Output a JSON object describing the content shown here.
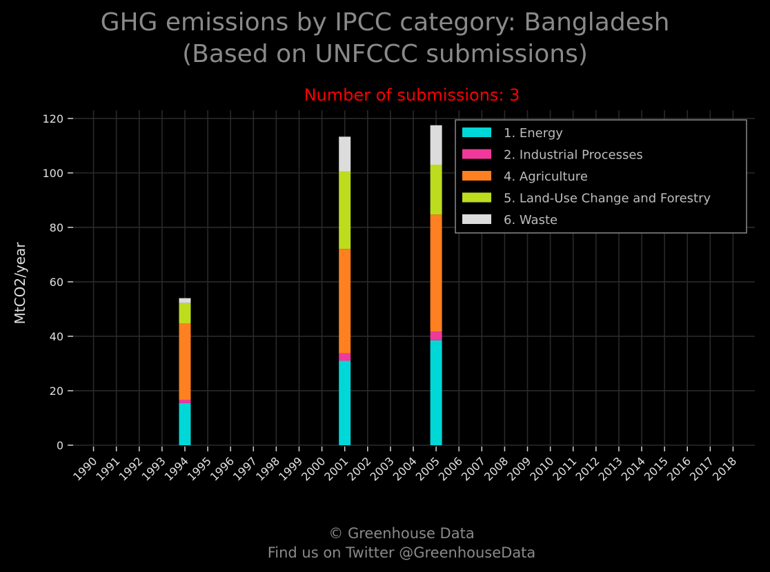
{
  "title_line1": "GHG emissions by IPCC category: Bangladesh",
  "title_line2": "(Based on UNFCCC submissions)",
  "subtitle": "Number of submissions: 3",
  "footer_line1": "© Greenhouse Data",
  "footer_line2": "Find us on Twitter @GreenhouseData",
  "colors": {
    "background": "#000000",
    "grid": "#2a2a2a",
    "title": "#8a8a8a",
    "subtitle": "#ff0000"
  },
  "chart_data": {
    "type": "bar",
    "stacked": true,
    "categories": [
      "1990",
      "1991",
      "1992",
      "1993",
      "1994",
      "1995",
      "1996",
      "1997",
      "1998",
      "1999",
      "2000",
      "2001",
      "2002",
      "2003",
      "2004",
      "2005",
      "2006",
      "2007",
      "2008",
      "2009",
      "2010",
      "2011",
      "2012",
      "2013",
      "2014",
      "2015",
      "2016",
      "2017",
      "2018"
    ],
    "ylabel": "MtCO2/year",
    "xlabel": "",
    "ylim": [
      0,
      123
    ],
    "yticks": [
      0,
      20,
      40,
      60,
      80,
      100,
      120
    ],
    "grid": true,
    "legend_position": "top-right",
    "series": [
      {
        "name": "1. Energy",
        "color": "#00d8d8",
        "values": [
          null,
          null,
          null,
          null,
          15.5,
          null,
          null,
          null,
          null,
          null,
          null,
          31.0,
          null,
          null,
          null,
          38.5,
          null,
          null,
          null,
          null,
          null,
          null,
          null,
          null,
          null,
          null,
          null,
          null,
          null
        ]
      },
      {
        "name": "2. Industrial Processes",
        "color": "#f0399a",
        "values": [
          null,
          null,
          null,
          null,
          1.2,
          null,
          null,
          null,
          null,
          null,
          null,
          2.8,
          null,
          null,
          null,
          3.2,
          null,
          null,
          null,
          null,
          null,
          null,
          null,
          null,
          null,
          null,
          null,
          null,
          null
        ]
      },
      {
        "name": "4. Agriculture",
        "color": "#ff8020",
        "values": [
          null,
          null,
          null,
          null,
          28.0,
          null,
          null,
          null,
          null,
          null,
          null,
          38.3,
          null,
          null,
          null,
          43.0,
          null,
          null,
          null,
          null,
          null,
          null,
          null,
          null,
          null,
          null,
          null,
          null,
          null
        ]
      },
      {
        "name": "5. Land-Use Change and Forestry",
        "color": "#bedc1e",
        "values": [
          null,
          null,
          null,
          null,
          7.5,
          null,
          null,
          null,
          null,
          null,
          null,
          28.5,
          null,
          null,
          null,
          18.3,
          null,
          null,
          null,
          null,
          null,
          null,
          null,
          null,
          null,
          null,
          null,
          null,
          null
        ]
      },
      {
        "name": "6. Waste",
        "color": "#dcdcdc",
        "values": [
          null,
          null,
          null,
          null,
          1.8,
          null,
          null,
          null,
          null,
          null,
          null,
          12.7,
          null,
          null,
          null,
          14.5,
          null,
          null,
          null,
          null,
          null,
          null,
          null,
          null,
          null,
          null,
          null,
          null,
          null
        ]
      }
    ]
  }
}
